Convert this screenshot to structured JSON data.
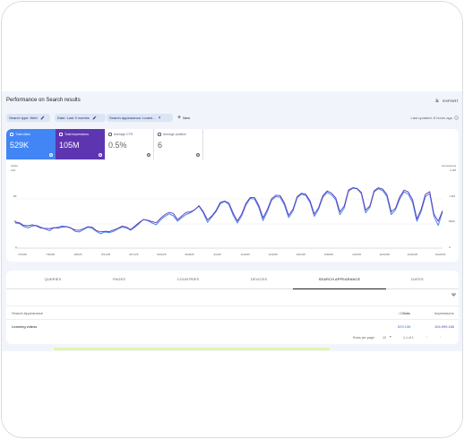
{
  "page": {
    "title": "Performance on Search results",
    "export_label": "EXPORT",
    "last_updated": "Last updated: 8 hours ago"
  },
  "filters": [
    {
      "label": "Search type: Web"
    },
    {
      "label": "Date: Last 3 months"
    },
    {
      "label": "Search appearance: Learni..."
    }
  ],
  "new_filter": {
    "label": "New"
  },
  "metrics": [
    {
      "label": "Total clicks",
      "value": "529K",
      "checked": true,
      "color": "#4285f4"
    },
    {
      "label": "Total impressions",
      "value": "105M",
      "checked": true,
      "color": "#5e35b1"
    },
    {
      "label": "Average CTR",
      "value": "0.5%",
      "checked": false,
      "color": "#ffffff"
    },
    {
      "label": "Average position",
      "value": "6",
      "checked": false,
      "color": "#ffffff"
    }
  ],
  "chart_data": {
    "type": "line",
    "xlabel": "",
    "ylabel": "",
    "left_axis": {
      "label": "Clicks",
      "subtitle": "13K",
      "ticks": [
        "8K",
        "4K",
        "0"
      ],
      "ylim": [
        0,
        13000
      ]
    },
    "right_axis": {
      "label": "Impressions",
      "subtitle": "2.4M",
      "ticks": [
        "1.6M",
        "800K",
        "0"
      ],
      "ylim": [
        0,
        2400000
      ]
    },
    "x_tick_labels": [
      "7/24/25",
      "7/30/25",
      "8/5/25",
      "8/11/25",
      "8/17/25",
      "8/23/25",
      "8/29/25",
      "9/4/25",
      "9/10/25",
      "9/16/25",
      "9/22/25",
      "9/28/25",
      "10/4/25",
      "10/10/25",
      "10/16/25",
      "10/22/25"
    ],
    "series": [
      {
        "name": "Clicks",
        "color": "#4285f4",
        "values": [
          4200,
          4100,
          3600,
          3400,
          3700,
          3800,
          3500,
          3200,
          2900,
          3400,
          3500,
          3700,
          3600,
          3400,
          2800,
          2700,
          3100,
          3500,
          3300,
          2800,
          2400,
          2700,
          2600,
          2800,
          3200,
          3500,
          3400,
          3000,
          3500,
          4100,
          4800,
          4600,
          4200,
          3900,
          4700,
          5300,
          5700,
          5400,
          4500,
          5100,
          5600,
          5900,
          6400,
          7000,
          5900,
          4300,
          5200,
          6100,
          7400,
          7800,
          7300,
          5500,
          4200,
          5400,
          7200,
          8300,
          8200,
          6800,
          4600,
          6100,
          8000,
          8600,
          8500,
          7200,
          5100,
          6200,
          8400,
          9000,
          8800,
          7600,
          5300,
          6500,
          8500,
          9300,
          8900,
          8100,
          5600,
          6700,
          9500,
          10000,
          9900,
          9100,
          5900,
          6800,
          9400,
          9900,
          9600,
          8600,
          5600,
          6400,
          8200,
          9400,
          9000,
          7600,
          4500,
          6100,
          8600,
          9100,
          5300,
          3800,
          6100
        ]
      },
      {
        "name": "Impressions",
        "color": "#5e35b1",
        "values": [
          800000,
          780000,
          700000,
          690000,
          720000,
          680000,
          620000,
          610000,
          600000,
          630000,
          620000,
          650000,
          660000,
          620000,
          560000,
          550000,
          600000,
          660000,
          650000,
          540000,
          500000,
          520000,
          510000,
          560000,
          610000,
          680000,
          650000,
          570000,
          680000,
          790000,
          880000,
          860000,
          820000,
          780000,
          920000,
          1030000,
          1100000,
          1070000,
          880000,
          990000,
          1100000,
          1120000,
          1180000,
          1310000,
          1130000,
          870000,
          990000,
          1160000,
          1410000,
          1450000,
          1390000,
          1080000,
          840000,
          1050000,
          1380000,
          1560000,
          1560000,
          1320000,
          930000,
          1190000,
          1520000,
          1630000,
          1620000,
          1390000,
          1010000,
          1200000,
          1590000,
          1690000,
          1660000,
          1460000,
          1050000,
          1250000,
          1620000,
          1760000,
          1700000,
          1550000,
          1120000,
          1300000,
          1790000,
          1860000,
          1840000,
          1720000,
          1170000,
          1300000,
          1770000,
          1860000,
          1820000,
          1650000,
          1120000,
          1230000,
          1580000,
          1790000,
          1730000,
          1490000,
          900000,
          1200000,
          1660000,
          1740000,
          1050000,
          830000,
          1150000
        ]
      }
    ],
    "grid": true
  },
  "tabs": [
    {
      "label": "QUERIES"
    },
    {
      "label": "PAGES"
    },
    {
      "label": "COUNTRIES"
    },
    {
      "label": "DEVICES"
    },
    {
      "label": "SEARCH APPEARANCE"
    },
    {
      "label": "DATES"
    }
  ],
  "table": {
    "headers": {
      "name": "Search Appearance",
      "clicks": "Clicks",
      "impressions": "Impressions"
    },
    "rows": [
      {
        "name": "Learning videos",
        "clicks": "529,136",
        "impressions": "104,999,160"
      }
    ]
  },
  "pagination": {
    "rows_per_page_label": "Rows per page:",
    "rows_per_page_value": "10",
    "range": "1-1 of 1"
  }
}
